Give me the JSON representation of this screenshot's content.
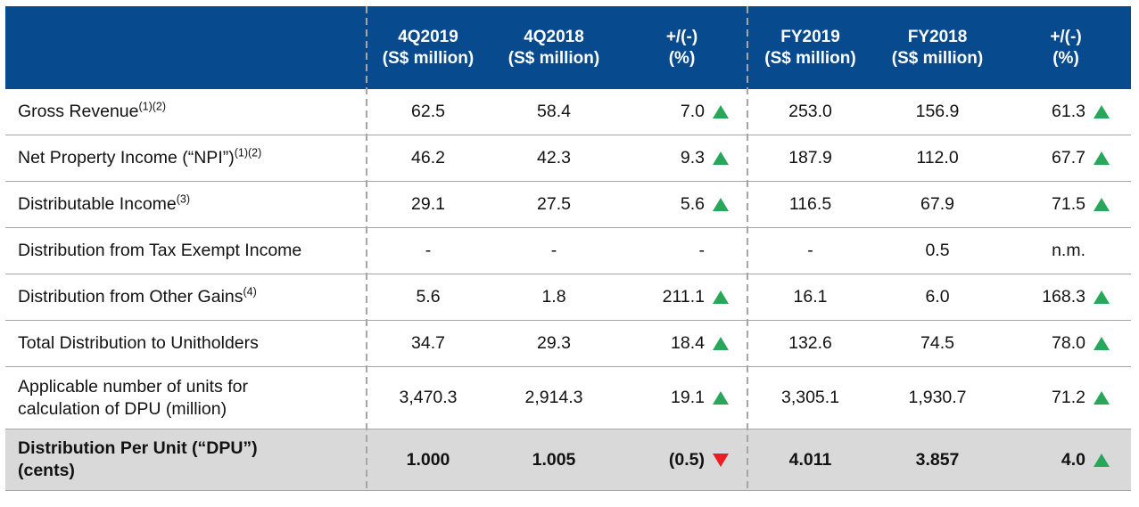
{
  "colors": {
    "header_bg": "#084A8E",
    "up_green": "#28A65A",
    "down_red": "#EC1B24",
    "highlight_row_bg": "#D9D9D9",
    "grid_line": "#A6A6A6"
  },
  "header": {
    "q2019": {
      "line1": "4Q2019",
      "line2": "(S$ million)"
    },
    "q2018": {
      "line1": "4Q2018",
      "line2": "(S$ million)"
    },
    "q_chg": {
      "line1": "+/(-)",
      "line2": "(%)"
    },
    "fy2019": {
      "line1": "FY2019",
      "line2": "(S$ million)"
    },
    "fy2018": {
      "line1": "FY2018",
      "line2": "(S$ million)"
    },
    "fy_chg": {
      "line1": "+/(-)",
      "line2": "(%)"
    }
  },
  "rows": [
    {
      "label": "Gross Revenue",
      "sup": "(1)(2)",
      "label2": "",
      "q2019": "62.5",
      "q2018": "58.4",
      "q_chg": "7.0",
      "q_dir": "up",
      "fy2019": "253.0",
      "fy2018": "156.9",
      "fy_chg": "61.3",
      "fy_dir": "up"
    },
    {
      "label": "Net Property Income (“NPI”)",
      "sup": "(1)(2)",
      "label2": "",
      "q2019": "46.2",
      "q2018": "42.3",
      "q_chg": "9.3",
      "q_dir": "up",
      "fy2019": "187.9",
      "fy2018": "112.0",
      "fy_chg": "67.7",
      "fy_dir": "up"
    },
    {
      "label": "Distributable Income",
      "sup": "(3)",
      "label2": "",
      "q2019": "29.1",
      "q2018": "27.5",
      "q_chg": "5.6",
      "q_dir": "up",
      "fy2019": "116.5",
      "fy2018": "67.9",
      "fy_chg": "71.5",
      "fy_dir": "up"
    },
    {
      "label": "Distribution from Tax Exempt Income",
      "sup": "",
      "label2": "",
      "q2019": "-",
      "q2018": "-",
      "q_chg": "-",
      "q_dir": "none",
      "fy2019": "-",
      "fy2018": "0.5",
      "fy_chg": "n.m.",
      "fy_dir": "none"
    },
    {
      "label": "Distribution from Other Gains",
      "sup": "(4)",
      "label2": "",
      "q2019": "5.6",
      "q2018": "1.8",
      "q_chg": "211.1",
      "q_dir": "up",
      "fy2019": "16.1",
      "fy2018": "6.0",
      "fy_chg": "168.3",
      "fy_dir": "up"
    },
    {
      "label": "Total Distribution to Unitholders",
      "sup": "",
      "label2": "",
      "q2019": "34.7",
      "q2018": "29.3",
      "q_chg": "18.4",
      "q_dir": "up",
      "fy2019": "132.6",
      "fy2018": "74.5",
      "fy_chg": "78.0",
      "fy_dir": "up"
    },
    {
      "label": "Applicable number of units for",
      "sup": "",
      "label2": "calculation of DPU (million)",
      "q2019": "3,470.3",
      "q2018": "2,914.3",
      "q_chg": "19.1",
      "q_dir": "up",
      "fy2019": "3,305.1",
      "fy2018": "1,930.7",
      "fy_chg": "71.2",
      "fy_dir": "up"
    },
    {
      "label": "Distribution Per Unit (“DPU”)",
      "sup": "",
      "label2": "(cents)",
      "q2019": "1.000",
      "q2018": "1.005",
      "q_chg": "(0.5)",
      "q_dir": "down",
      "fy2019": "4.011",
      "fy2018": "3.857",
      "fy_chg": "4.0",
      "fy_dir": "up"
    }
  ]
}
